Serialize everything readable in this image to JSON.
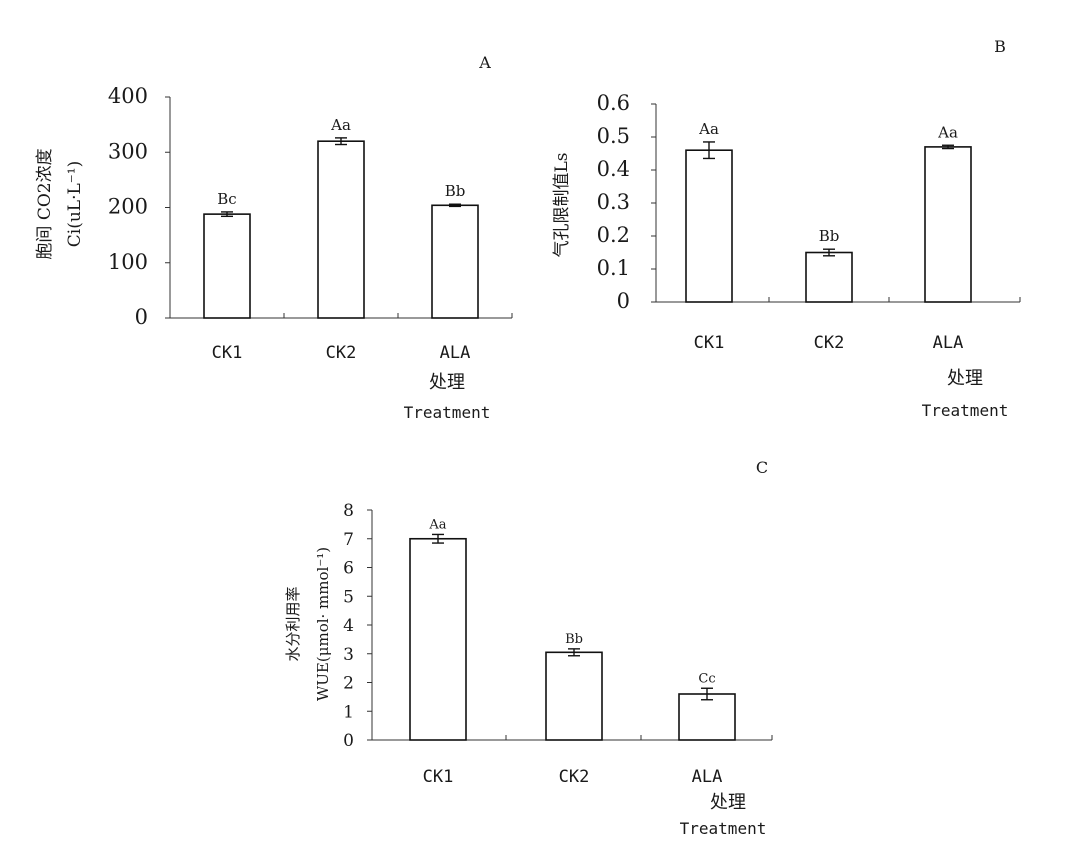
{
  "chart_data": [
    {
      "type": "bar",
      "panel": "A",
      "categories": [
        "CK1",
        "CK2",
        "ALA"
      ],
      "values": [
        188,
        320,
        204
      ],
      "errors": [
        4,
        6,
        2
      ],
      "significance": [
        "Bc",
        "Aa",
        "Bb"
      ],
      "xlabel_cn": "处理",
      "xlabel_en": "Treatment",
      "ylabel_line1": "胞间 CO2浓度",
      "ylabel_line2": "Ci(uL·L⁻¹)",
      "ylim": [
        0,
        400
      ],
      "yticks": [
        "0",
        "100",
        "200",
        "300",
        "400"
      ]
    },
    {
      "type": "bar",
      "panel": "B",
      "categories": [
        "CK1",
        "CK2",
        "ALA"
      ],
      "values": [
        0.46,
        0.15,
        0.47
      ],
      "errors": [
        0.025,
        0.01,
        0.005
      ],
      "significance": [
        "Aa",
        "Bb",
        "Aa"
      ],
      "xlabel_cn": "处理",
      "xlabel_en": "Treatment",
      "ylabel_line1": "气孔限制值Ls",
      "ylim": [
        0,
        0.6
      ],
      "yticks": [
        "0",
        "0.1",
        "0.2",
        "0.3",
        "0.4",
        "0.5",
        "0.6"
      ]
    },
    {
      "type": "bar",
      "panel": "C",
      "categories": [
        "CK1",
        "CK2",
        "ALA"
      ],
      "values": [
        7.0,
        3.05,
        1.6
      ],
      "errors": [
        0.15,
        0.12,
        0.2
      ],
      "significance": [
        "Aa",
        "Bb",
        "Cc"
      ],
      "xlabel_cn": "处理",
      "xlabel_en": "Treatment",
      "ylabel_line1": "水分利用率",
      "ylabel_line2": "WUE(μmol· mmol⁻¹)",
      "ylim": [
        0,
        8
      ],
      "yticks": [
        "0",
        "1",
        "2",
        "3",
        "4",
        "5",
        "6",
        "7",
        "8"
      ]
    }
  ]
}
